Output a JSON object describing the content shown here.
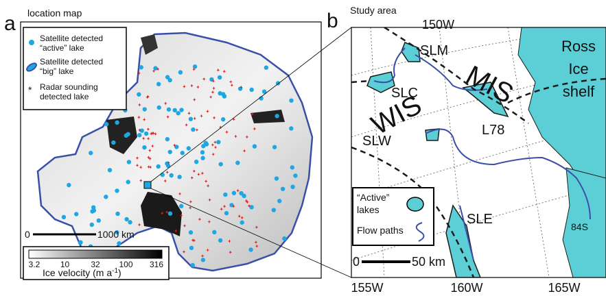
{
  "panel_a": {
    "letter": "a",
    "title": "location map",
    "legend": [
      "Satellite detected",
      "“active” lake",
      "Satellite detected",
      "“big” lake",
      "Radar sounding",
      "detected lake"
    ],
    "scale_bar": {
      "start": "0",
      "end": "1000 km"
    },
    "colorbar": {
      "ticks": [
        "3.2",
        "10",
        "32",
        "100",
        "316"
      ],
      "title": "Ice velocity (m a",
      "title_exponent": "-1",
      "title_close": ")"
    }
  },
  "panel_b": {
    "letter": "b",
    "title": "Study area",
    "longitudes_top": [
      "150W"
    ],
    "longitudes_bottom": [
      "155W",
      "160W",
      "165W"
    ],
    "labels": {
      "slm": "SLM",
      "mis": "MIS",
      "slc": "SLC",
      "wis": "WIS",
      "slw": "SLW",
      "l78": "L78",
      "sle": "SLE",
      "lat": "84S"
    },
    "ross": [
      "Ross",
      "Ice",
      "shelf"
    ],
    "legend": [
      "“Active”",
      "lakes",
      "Flow paths"
    ],
    "scale_bar": {
      "start": "0",
      "end": "50 km"
    }
  }
}
